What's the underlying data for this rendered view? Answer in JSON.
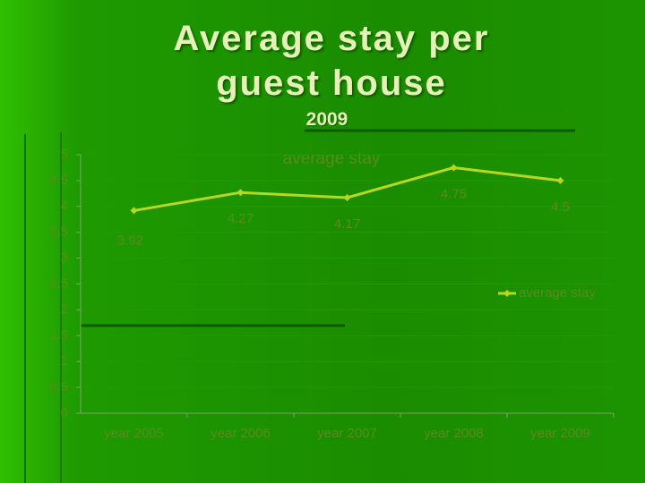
{
  "title": "Average stay per guest house",
  "subtitle": "2009",
  "chart_data": {
    "type": "line",
    "title": "average stay",
    "categories": [
      "year 2005",
      "year 2006",
      "year 2007",
      "year 2008",
      "year 2009"
    ],
    "series": [
      {
        "name": "average stay",
        "color": "#b8d820",
        "values": [
          3.92,
          4.27,
          4.17,
          4.75,
          4.5
        ]
      }
    ],
    "ylim": [
      0,
      5
    ],
    "yticks": [
      0,
      0.5,
      1,
      1.5,
      2,
      2.5,
      3,
      3.5,
      4,
      4.5,
      5
    ],
    "grid": true,
    "legend": "right",
    "data_labels": true
  }
}
